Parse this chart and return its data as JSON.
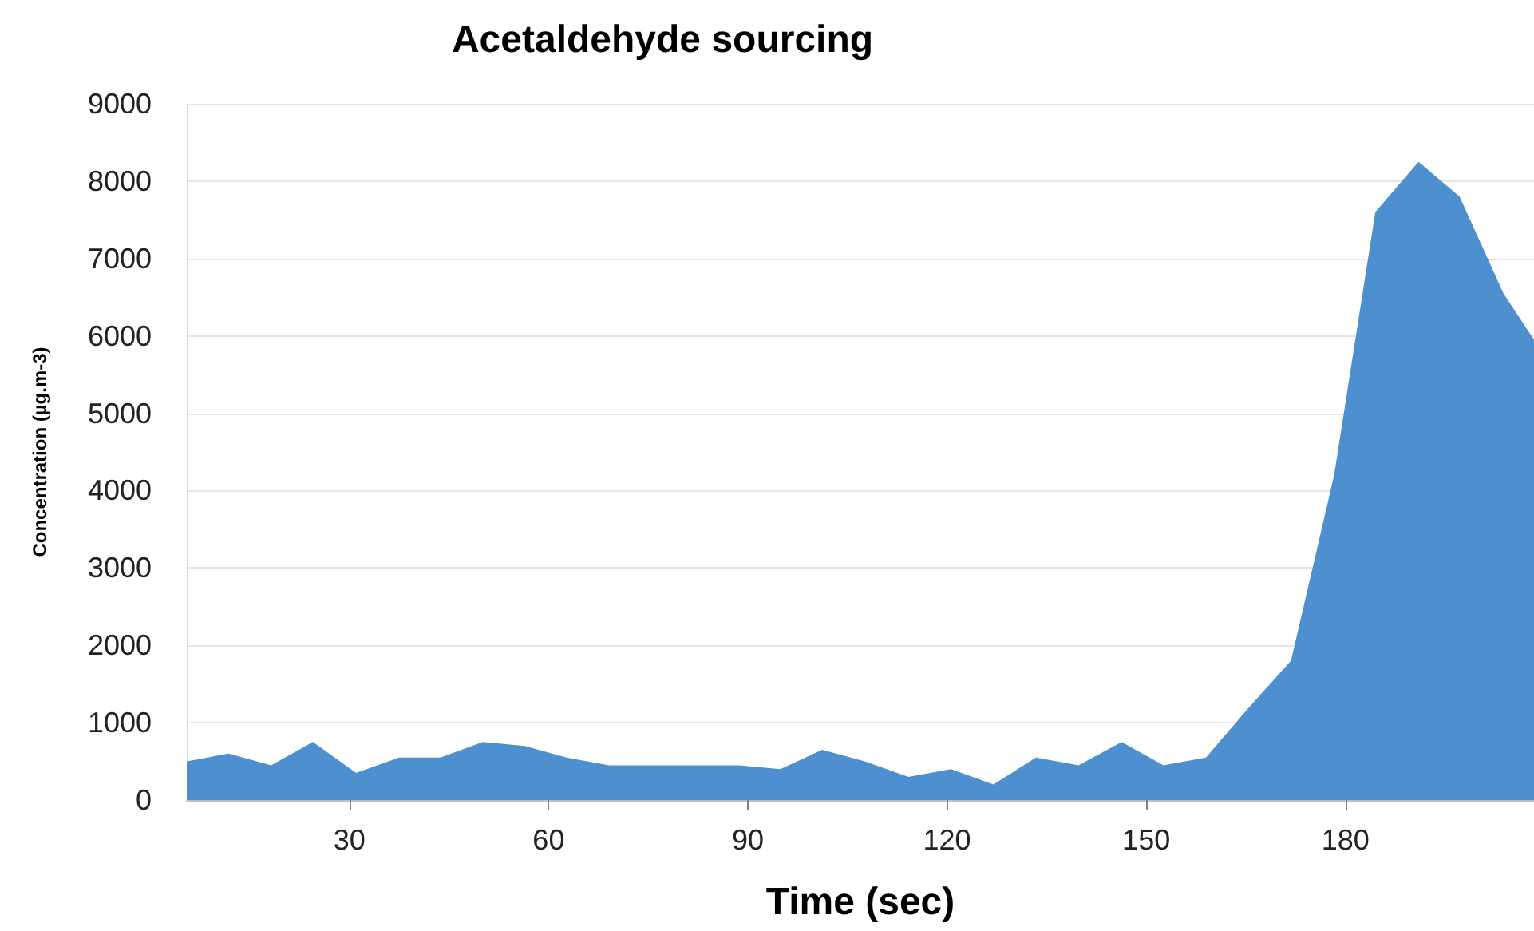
{
  "chart_data": {
    "type": "area",
    "title": "Acetaldehyde sourcing",
    "xlabel": "Time (sec)",
    "ylabel": "Concentration (µg.m-3)",
    "x": [
      5.5,
      11.8,
      18.2,
      24.5,
      31.0,
      37.5,
      43.7,
      50.1,
      56.4,
      62.7,
      69.1,
      75.4,
      82.3,
      88.7,
      94.9,
      101.2,
      107.6,
      114.2,
      120.6,
      127.0,
      133.4,
      139.8,
      146.3,
      152.6,
      159.0,
      165.5,
      171.8,
      178.3,
      184.5,
      191.0,
      197.2,
      203.8,
      208.4
    ],
    "series": [
      {
        "color": "#4d8fcf",
        "values": [
          500,
          600,
          450,
          750,
          350,
          550,
          550,
          750,
          700,
          550,
          450,
          450,
          450,
          450,
          400,
          650,
          500,
          300,
          400,
          200,
          550,
          450,
          750,
          450,
          550,
          1200,
          1800,
          4200,
          7600,
          8250,
          7800,
          6550,
          5950
        ]
      }
    ],
    "xlim": [
      5.5,
      208.4
    ],
    "xticks": [
      30,
      60,
      90,
      120,
      150,
      180
    ],
    "ylim": [
      0,
      9000
    ],
    "yticks": [
      0,
      1000,
      2000,
      3000,
      4000,
      5000,
      6000,
      7000,
      8000,
      9000
    ],
    "grid": "y",
    "marker": "none"
  }
}
